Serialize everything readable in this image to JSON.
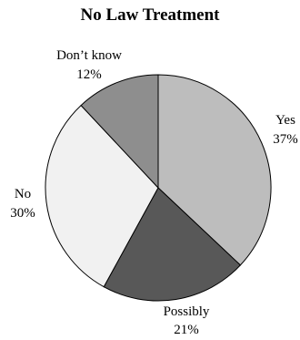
{
  "chart_data": {
    "type": "pie",
    "title": "No Law Treatment",
    "slices": [
      {
        "label": "Yes",
        "value": 37,
        "value_label": "37%",
        "color": "#bdbdbd"
      },
      {
        "label": "Possibly",
        "value": 21,
        "value_label": "21%",
        "color": "#585858"
      },
      {
        "label": "No",
        "value": 30,
        "value_label": "30%",
        "color": "#f1f1f1"
      },
      {
        "label": "Don’t know",
        "value": 12,
        "value_label": "12%",
        "color": "#8e8e8e"
      }
    ],
    "start": "12 o'clock",
    "direction": "clockwise",
    "stroke_color": "#000000"
  }
}
